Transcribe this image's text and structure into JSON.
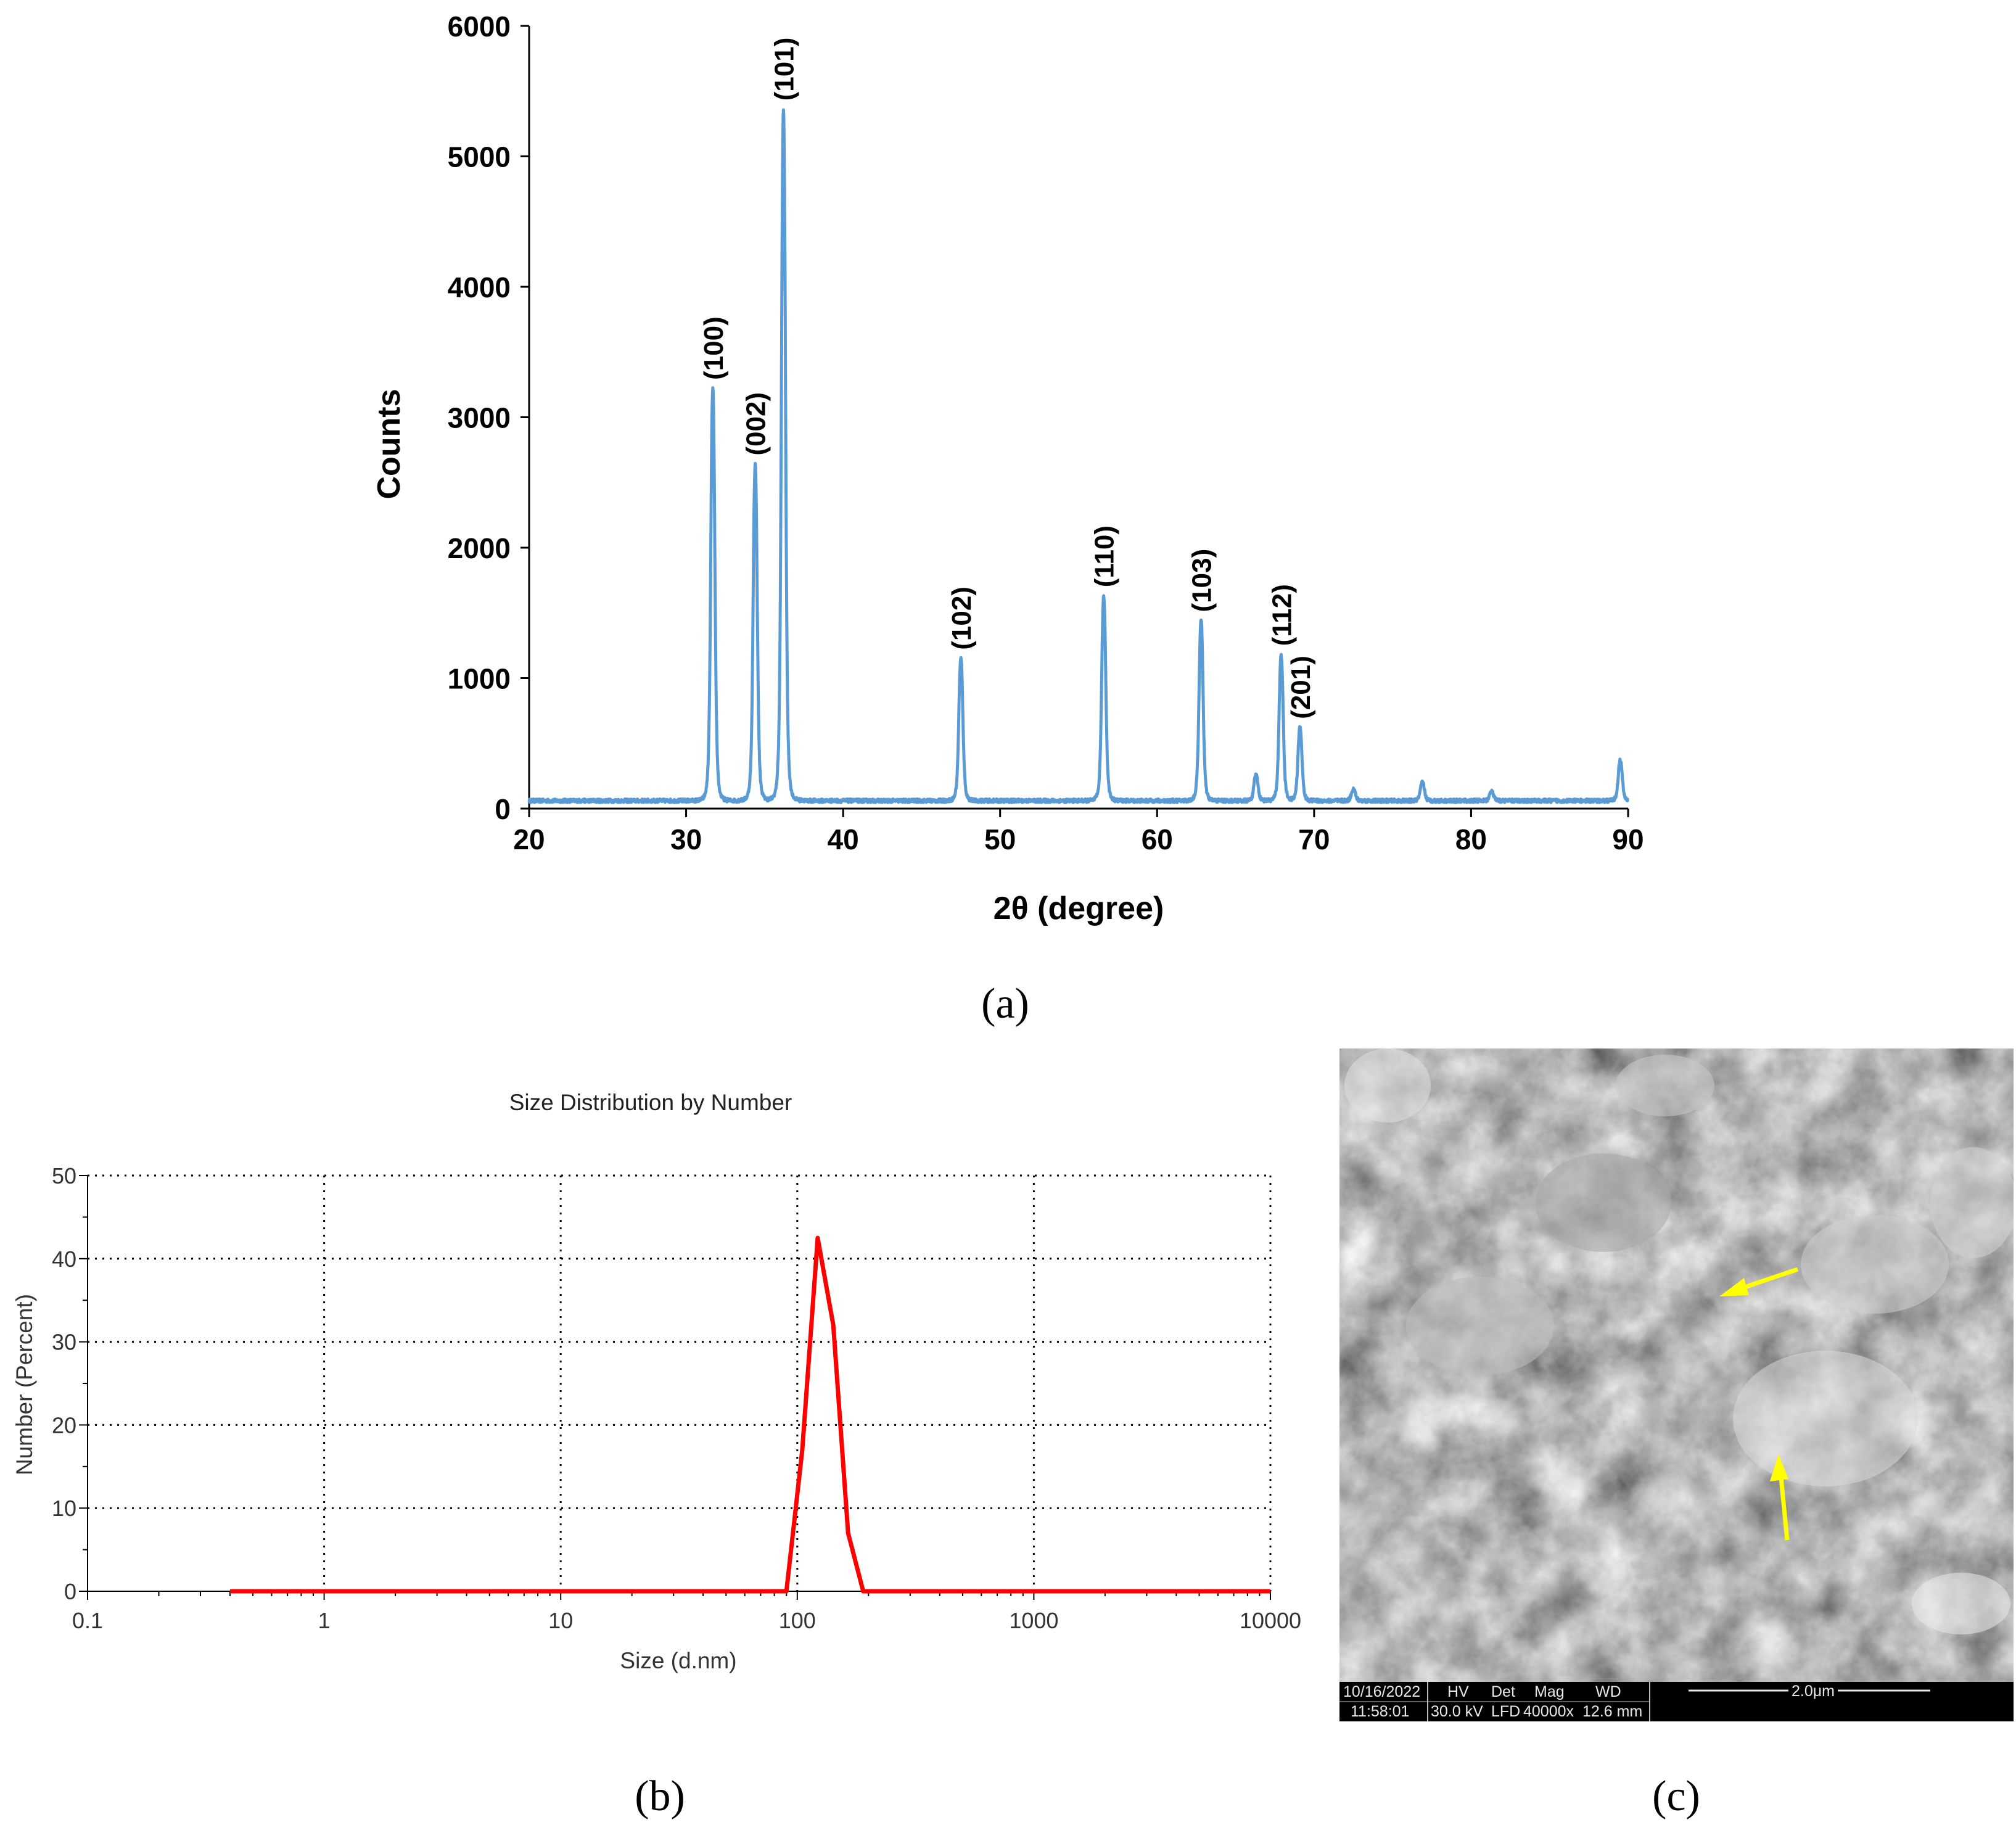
{
  "panel_labels": {
    "a": "(a)",
    "b": "(b)",
    "c": "(c)"
  },
  "chart_data": [
    {
      "type": "line",
      "title": "",
      "xlabel": "2θ (degree)",
      "ylabel": "Counts",
      "xlim": [
        20,
        90
      ],
      "ylim": [
        0,
        6000
      ],
      "x_ticks": [
        20,
        30,
        40,
        50,
        60,
        70,
        80,
        90
      ],
      "y_ticks": [
        0,
        1000,
        2000,
        3000,
        4000,
        5000,
        6000
      ],
      "grid": false,
      "color": "#5b9bd5",
      "baseline": 60,
      "series": [
        {
          "peaks": [
            {
              "x": 31.7,
              "y": 3220
            },
            {
              "x": 34.4,
              "y": 2640
            },
            {
              "x": 36.2,
              "y": 5360
            },
            {
              "x": 47.5,
              "y": 1150
            },
            {
              "x": 56.6,
              "y": 1630
            },
            {
              "x": 62.8,
              "y": 1440
            },
            {
              "x": 66.3,
              "y": 260
            },
            {
              "x": 67.9,
              "y": 1180
            },
            {
              "x": 69.1,
              "y": 620
            },
            {
              "x": 72.5,
              "y": 150
            },
            {
              "x": 76.9,
              "y": 200
            },
            {
              "x": 81.3,
              "y": 130
            },
            {
              "x": 89.5,
              "y": 370
            }
          ]
        }
      ],
      "annotations": [
        {
          "text": "(100)",
          "x": 31.7,
          "y": 3220
        },
        {
          "text": "(002)",
          "x": 34.4,
          "y": 2640
        },
        {
          "text": "(101)",
          "x": 36.2,
          "y": 5360
        },
        {
          "text": "(102)",
          "x": 47.5,
          "y": 1150
        },
        {
          "text": "(110)",
          "x": 56.6,
          "y": 1630
        },
        {
          "text": "(103)",
          "x": 62.8,
          "y": 1440
        },
        {
          "text": "(112)",
          "x": 67.9,
          "y": 1180
        },
        {
          "text": "(201)",
          "x": 69.1,
          "y": 620
        }
      ]
    },
    {
      "type": "line",
      "title": "Size Distribution by Number",
      "xlabel": "Size (d.nm)",
      "ylabel": "Number (Percent)",
      "xscale": "log",
      "xlim": [
        0.1,
        10000
      ],
      "ylim": [
        0,
        50
      ],
      "x_ticks": [
        "0.1",
        "1",
        "10",
        "100",
        "1000",
        "10000"
      ],
      "y_ticks": [
        0,
        10,
        20,
        30,
        40,
        50
      ],
      "grid": true,
      "color": "#ff0000",
      "series": [
        {
          "x": [
            0.4,
            90,
            105,
            122,
            142,
            164,
            190,
            10000
          ],
          "y": [
            0,
            0,
            17,
            42.5,
            32,
            7,
            0,
            0
          ]
        }
      ]
    }
  ],
  "sem": {
    "info_headers": [
      "10/16/2022",
      "HV",
      "Det",
      "Mag",
      "WD"
    ],
    "info_values": [
      "11:58:01",
      "30.0 kV",
      "LFD",
      "40000x",
      "12.6 mm"
    ],
    "scale_label": "2.0μm"
  }
}
